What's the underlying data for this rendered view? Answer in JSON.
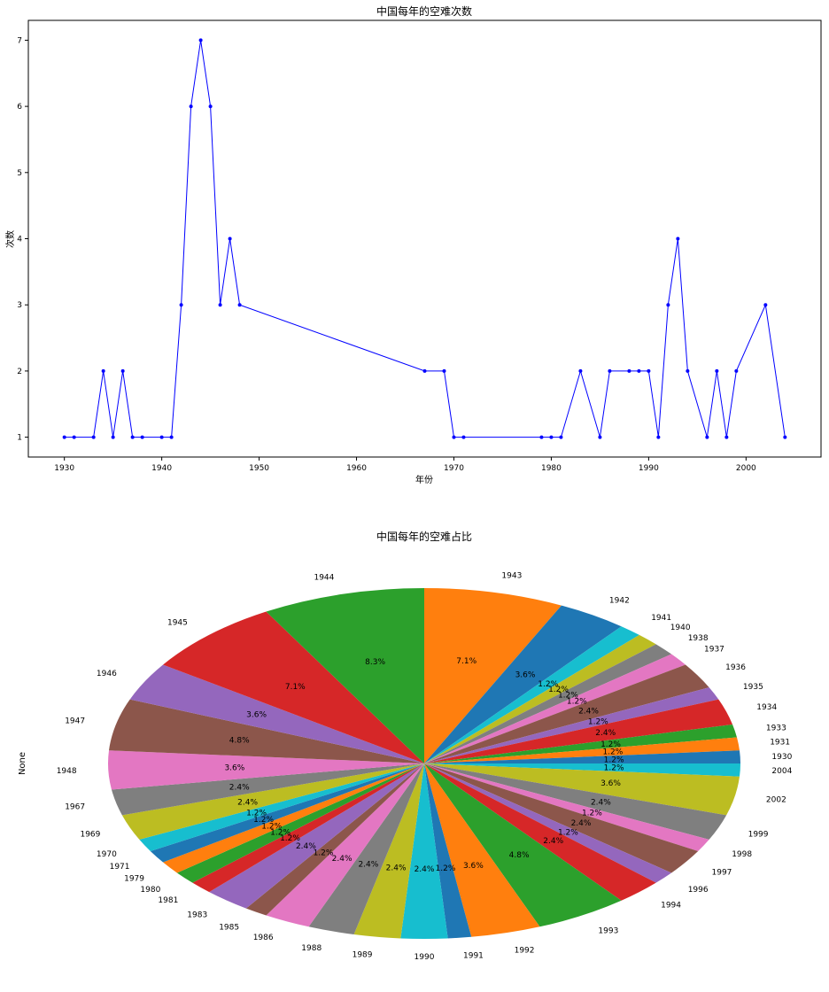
{
  "chart_data": [
    {
      "type": "line",
      "title": "中国每年的空难次数",
      "xlabel": "年份",
      "ylabel": "次数",
      "xlim": [
        1926.3,
        2007.7
      ],
      "ylim": [
        0.7,
        7.3
      ],
      "xticks": [
        1930,
        1940,
        1950,
        1960,
        1970,
        1980,
        1990,
        2000
      ],
      "yticks": [
        1,
        2,
        3,
        4,
        5,
        6,
        7
      ],
      "grid": false,
      "series": [
        {
          "color": "#0000ff",
          "marker": "point",
          "x": [
            1930,
            1931,
            1933,
            1934,
            1935,
            1936,
            1937,
            1938,
            1940,
            1941,
            1942,
            1943,
            1944,
            1945,
            1946,
            1947,
            1948,
            1967,
            1969,
            1970,
            1971,
            1979,
            1980,
            1981,
            1983,
            1985,
            1986,
            1988,
            1989,
            1990,
            1991,
            1992,
            1993,
            1994,
            1996,
            1997,
            1998,
            1999,
            2002,
            2004
          ],
          "y": [
            1,
            1,
            1,
            2,
            1,
            2,
            1,
            1,
            1,
            1,
            3,
            6,
            7,
            6,
            3,
            4,
            3,
            2,
            2,
            1,
            1,
            1,
            1,
            1,
            2,
            1,
            2,
            2,
            2,
            2,
            1,
            3,
            4,
            2,
            1,
            2,
            1,
            2,
            3,
            1
          ]
        }
      ]
    },
    {
      "type": "pie",
      "title": "中国每年的空难占比",
      "ylabel": "None",
      "autopct_format": "1 decimal percent",
      "categories": [
        "1943",
        "1942",
        "1941",
        "1940",
        "1938",
        "1937",
        "1936",
        "1935",
        "1934",
        "1933",
        "1931",
        "1930",
        "2004",
        "2002",
        "1999",
        "1998",
        "1997",
        "1996",
        "1994",
        "1993",
        "1992",
        "1991",
        "1990",
        "1989",
        "1988",
        "1986",
        "1985",
        "1983",
        "1981",
        "1980",
        "1979",
        "1971",
        "1970",
        "1969",
        "1967",
        "1948",
        "1947",
        "1946",
        "1945",
        "1944"
      ],
      "values": [
        6,
        3,
        1,
        1,
        1,
        1,
        2,
        1,
        2,
        1,
        1,
        1,
        1,
        3,
        2,
        1,
        2,
        1,
        2,
        4,
        3,
        1,
        2,
        2,
        2,
        2,
        1,
        2,
        1,
        1,
        1,
        1,
        1,
        2,
        2,
        3,
        4,
        3,
        6,
        7
      ],
      "pct_labels": [
        "7.1%",
        "3.6%",
        "1.2%",
        "1.2%",
        "1.2%",
        "1.2%",
        "2.4%",
        "1.2%",
        "2.4%",
        "1.2%",
        "1.2%",
        "1.2%",
        "1.2%",
        "3.6%",
        "2.4%",
        "1.2%",
        "2.4%",
        "1.2%",
        "2.4%",
        "4.8%",
        "3.6%",
        "1.2%",
        "2.4%",
        "2.4%",
        "2.4%",
        "2.4%",
        "1.2%",
        "2.4%",
        "1.2%",
        "1.2%",
        "1.2%",
        "1.2%",
        "1.2%",
        "2.4%",
        "2.4%",
        "3.6%",
        "4.8%",
        "3.6%",
        "7.1%",
        "8.3%"
      ],
      "colors": [
        "#ff7f0e",
        "#1f77b4",
        "#17becf",
        "#bcbd22",
        "#7f7f7f",
        "#e377c2",
        "#8c564b",
        "#9467bd",
        "#d62728",
        "#2ca02c",
        "#ff7f0e",
        "#1f77b4",
        "#17becf",
        "#bcbd22",
        "#7f7f7f",
        "#e377c2",
        "#8c564b",
        "#9467bd",
        "#d62728",
        "#2ca02c",
        "#ff7f0e",
        "#1f77b4",
        "#17becf",
        "#bcbd22",
        "#7f7f7f",
        "#e377c2",
        "#8c564b",
        "#9467bd",
        "#d62728",
        "#2ca02c",
        "#ff7f0e",
        "#1f77b4",
        "#17becf",
        "#bcbd22",
        "#7f7f7f",
        "#e377c2",
        "#8c564b",
        "#9467bd",
        "#d62728",
        "#2ca02c"
      ],
      "startangle": 90,
      "direction": "clockwise"
    }
  ]
}
